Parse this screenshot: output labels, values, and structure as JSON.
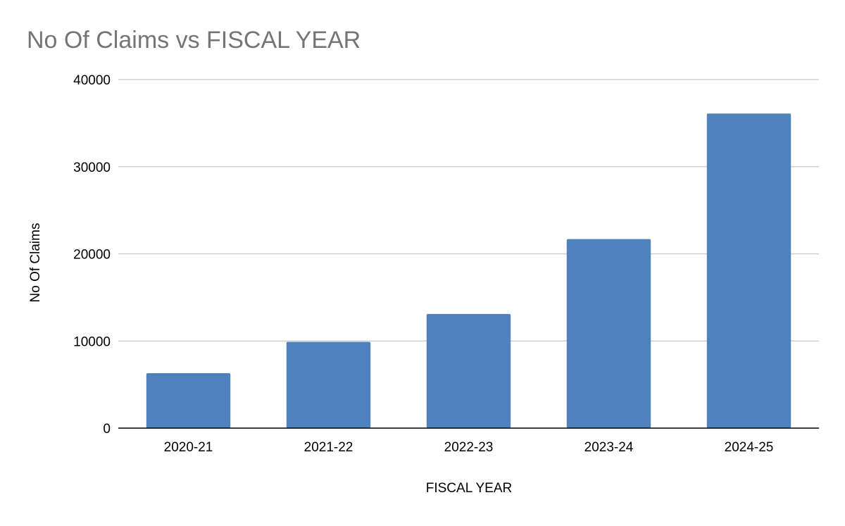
{
  "chart_data": {
    "type": "bar",
    "title": "No Of Claims vs FISCAL YEAR",
    "xlabel": "FISCAL YEAR",
    "ylabel": "No Of Claims",
    "categories": [
      "2020-21",
      "2021-22",
      "2022-23",
      "2023-24",
      "2024-25"
    ],
    "values": [
      6300,
      9900,
      13100,
      21700,
      36100
    ],
    "ylim": [
      0,
      40000
    ],
    "yticks": [
      "0",
      "10000",
      "20000",
      "30000",
      "40000"
    ],
    "grid": true,
    "legend": "none",
    "colors": {
      "bar": "#4f81bd",
      "grid": "#c8c8c8",
      "axis": "#000000",
      "title": "#757575"
    }
  }
}
